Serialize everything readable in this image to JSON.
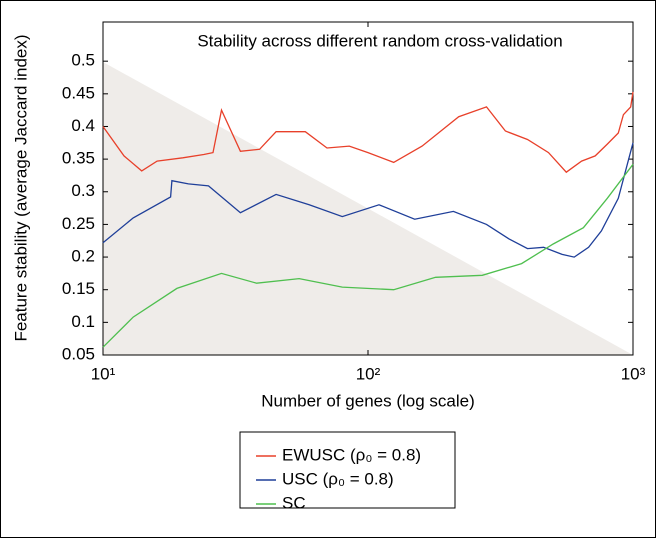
{
  "chart_data": {
    "type": "line",
    "title": "Stability across different random cross-validation",
    "xlabel": "Number of genes (log scale)",
    "ylabel": "Feature stability (average Jaccard index)",
    "xscale": "log",
    "xlim": [
      10,
      1000
    ],
    "xticks": [
      {
        "value": 10,
        "label": "10¹"
      },
      {
        "value": 100,
        "label": "10²"
      },
      {
        "value": 1000,
        "label": "10³"
      }
    ],
    "ylim": [
      0.05,
      0.56
    ],
    "yticks": [
      0.05,
      0.1,
      0.15,
      0.2,
      0.25,
      0.3,
      0.35,
      0.4,
      0.45,
      0.5
    ],
    "legend": "below",
    "series": [
      {
        "name": "EWUSC (ρ₀ = 0.8)",
        "color": "#e8402a",
        "x": [
          10,
          12,
          14,
          16,
          20,
          24,
          26,
          28,
          33,
          39,
          45,
          58,
          70,
          85,
          100,
          125,
          160,
          220,
          280,
          330,
          400,
          480,
          560,
          640,
          720,
          800,
          880,
          920,
          980,
          1000
        ],
        "values": [
          0.4,
          0.355,
          0.332,
          0.347,
          0.352,
          0.357,
          0.36,
          0.425,
          0.362,
          0.365,
          0.392,
          0.392,
          0.367,
          0.37,
          0.36,
          0.345,
          0.37,
          0.415,
          0.43,
          0.393,
          0.38,
          0.36,
          0.33,
          0.347,
          0.355,
          0.373,
          0.39,
          0.418,
          0.43,
          0.453
        ]
      },
      {
        "name": "USC (ρ₀ = 0.8)",
        "color": "#1f3f99",
        "x": [
          10,
          13,
          18,
          18.2,
          21,
          25,
          33,
          45,
          60,
          80,
          110,
          150,
          210,
          280,
          340,
          400,
          460,
          540,
          600,
          680,
          760,
          880,
          1000
        ],
        "values": [
          0.222,
          0.26,
          0.292,
          0.317,
          0.312,
          0.309,
          0.268,
          0.296,
          0.28,
          0.262,
          0.28,
          0.258,
          0.27,
          0.25,
          0.228,
          0.213,
          0.215,
          0.204,
          0.2,
          0.215,
          0.24,
          0.29,
          0.375
        ]
      },
      {
        "name": "SC",
        "color": "#4fbf4f",
        "x": [
          10,
          13,
          19,
          28,
          38,
          55,
          80,
          125,
          180,
          270,
          380,
          500,
          650,
          800,
          1000
        ],
        "values": [
          0.062,
          0.108,
          0.152,
          0.175,
          0.16,
          0.167,
          0.154,
          0.15,
          0.169,
          0.172,
          0.19,
          0.22,
          0.245,
          0.29,
          0.342
        ]
      }
    ]
  }
}
